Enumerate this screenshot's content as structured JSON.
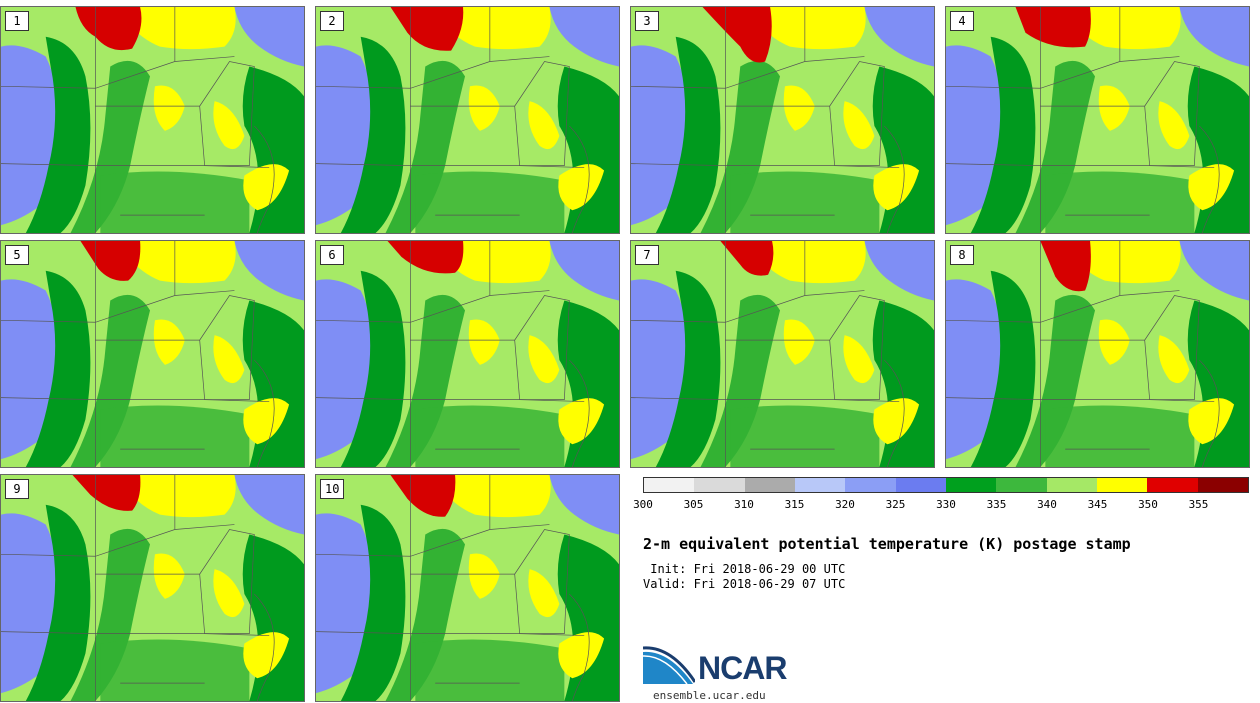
{
  "colors": {
    "scale": [
      "#f2f2f2",
      "#dadada",
      "#ababab",
      "#b8c8f8",
      "#8b9ef5",
      "#6b7cf0",
      "#00a01e",
      "#3db83d",
      "#a5e866",
      "#ffff00",
      "#e00000",
      "#8b0000"
    ],
    "map_background": "#9ddc5e",
    "lake_blue": "#7f8ef5",
    "dark_green": "#009a1e",
    "mid_green": "#33b233",
    "light_green": "#a6ea66",
    "yellow": "#ffff00",
    "red": "#d60000",
    "border_line": "#555555"
  },
  "panels": [
    {
      "label": "1"
    },
    {
      "label": "2"
    },
    {
      "label": "3"
    },
    {
      "label": "4"
    },
    {
      "label": "5"
    },
    {
      "label": "6"
    },
    {
      "label": "7"
    },
    {
      "label": "8"
    },
    {
      "label": "9"
    },
    {
      "label": "10"
    }
  ],
  "colorbar": {
    "ticks": [
      "300",
      "305",
      "310",
      "315",
      "320",
      "325",
      "330",
      "335",
      "340",
      "345",
      "350",
      "355"
    ]
  },
  "info": {
    "title": "2-m equivalent potential temperature (K) postage stamp",
    "init": " Init: Fri 2018-06-29 00 UTC",
    "valid": "Valid: Fri 2018-06-29 07 UTC"
  },
  "logo": {
    "wordmark": "NCAR",
    "url": "ensemble.ucar.edu"
  }
}
